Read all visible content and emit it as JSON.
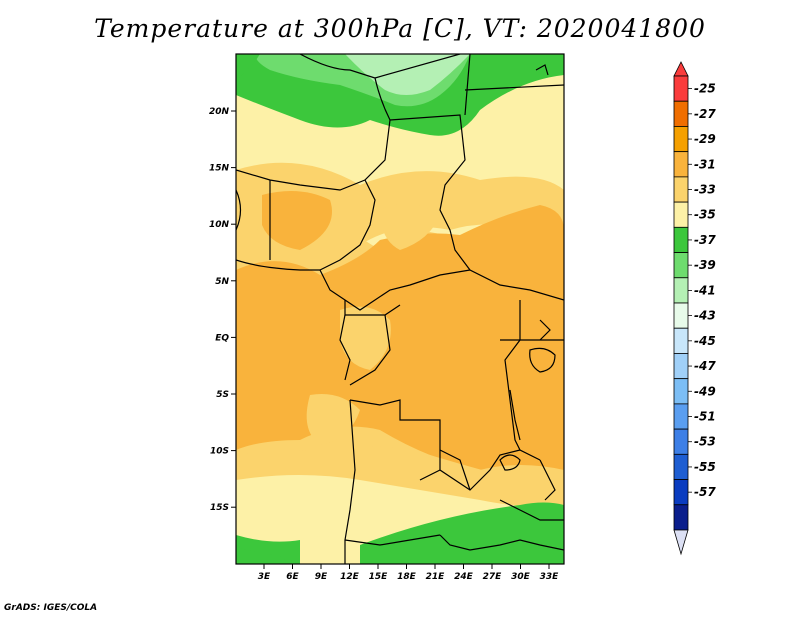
{
  "title": "Temperature at 300hPa [C], VT: 2020041800",
  "footer": "GrADS: IGES/COLA",
  "map": {
    "x_ticks": [
      "3E",
      "6E",
      "9E",
      "12E",
      "15E",
      "18E",
      "21E",
      "24E",
      "27E",
      "30E",
      "33E"
    ],
    "y_ticks": [
      "20N",
      "15N",
      "10N",
      "5N",
      "EQ",
      "5S",
      "10S",
      "15S"
    ]
  },
  "colorbar": {
    "labels": [
      "-25",
      "-27",
      "-29",
      "-31",
      "-33",
      "-35",
      "-37",
      "-39",
      "-41",
      "-43",
      "-45",
      "-47",
      "-49",
      "-51",
      "-53",
      "-55",
      "-57"
    ],
    "colors": [
      "#fa3c3c",
      "#f06e00",
      "#f5a000",
      "#f9b33c",
      "#fbd36c",
      "#fdf1a7",
      "#3cc73c",
      "#6edc6e",
      "#b4f0b4",
      "#e8fbea",
      "#c8e6fa",
      "#a0d0f8",
      "#7cbef5",
      "#5a9ef0",
      "#3d7fe6",
      "#1e5ed2",
      "#0a3cc0",
      "#0a1e8c"
    ],
    "outer_low_color": "#dce0f4"
  }
}
